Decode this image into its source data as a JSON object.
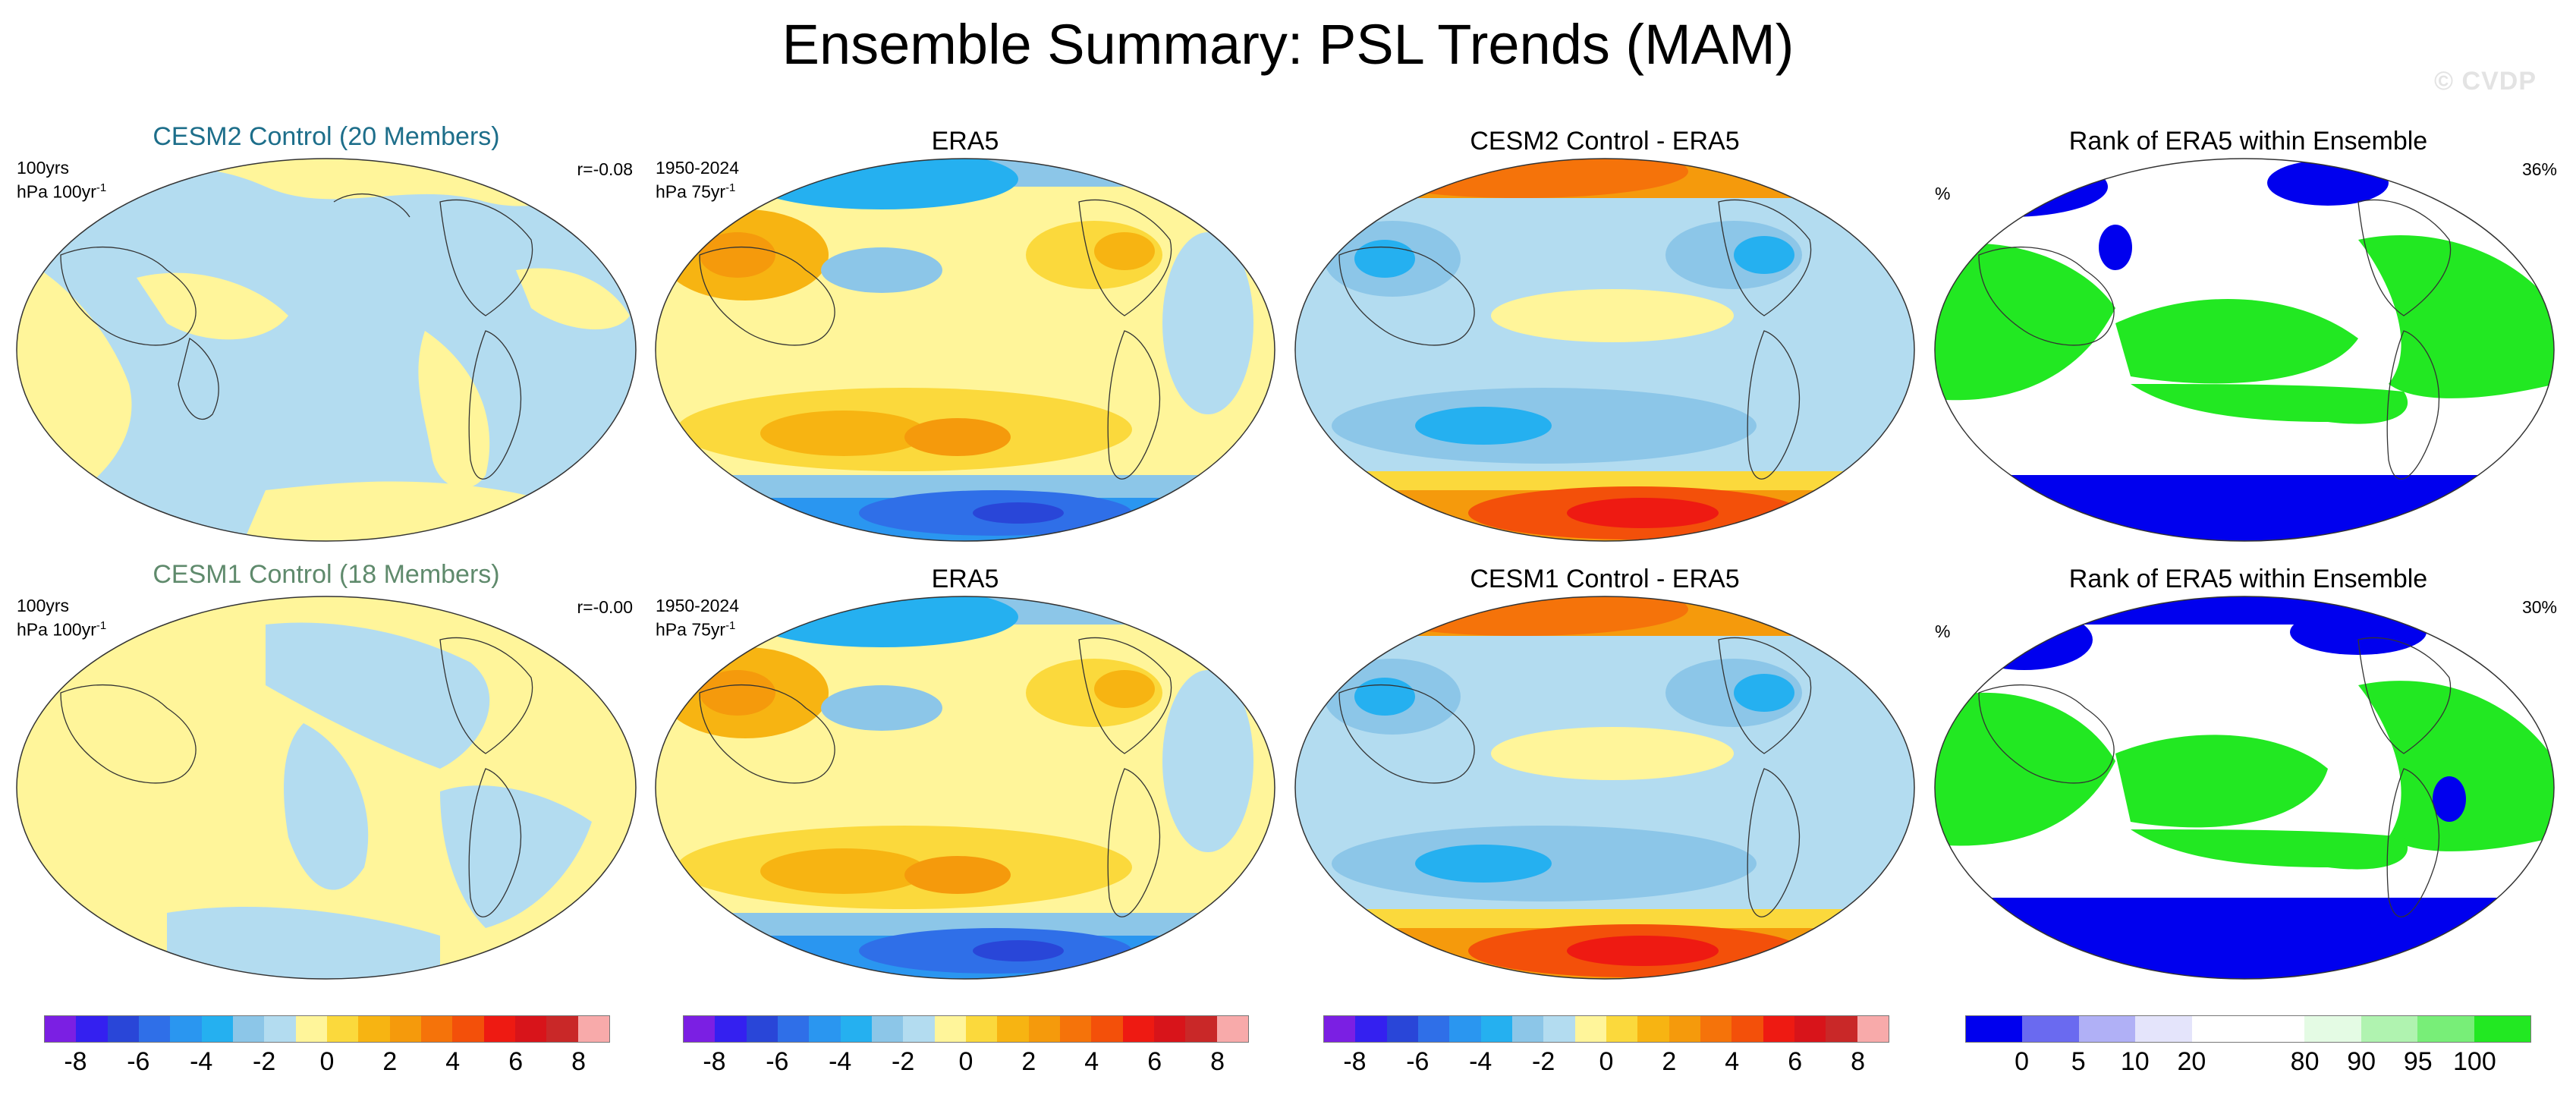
{
  "title": "Ensemble Summary: PSL Trends (MAM)",
  "watermark": "© CVDP",
  "rows": [
    {
      "model_panel": {
        "title": "CESM2 Control (20 Members)",
        "title_color": "#1d6e8a",
        "period": "100yrs",
        "units": "hPa 100yr",
        "units_exp": "-1",
        "corr": "r=-0.08"
      },
      "obs_panel": {
        "title": "ERA5",
        "period": "1950-2024",
        "units": "hPa 75yr",
        "units_exp": "-1"
      },
      "diff_panel": {
        "title": "CESM2 Control - ERA5"
      },
      "rank_panel": {
        "title": "Rank of ERA5 within Ensemble",
        "units": "%",
        "percent": "36%"
      }
    },
    {
      "model_panel": {
        "title": "CESM1 Control (18 Members)",
        "title_color": "#5f8a6c",
        "period": "100yrs",
        "units": "hPa 100yr",
        "units_exp": "-1",
        "corr": "r=-0.00"
      },
      "obs_panel": {
        "title": "ERA5",
        "period": "1950-2024",
        "units": "hPa 75yr",
        "units_exp": "-1"
      },
      "diff_panel": {
        "title": "CESM1 Control - ERA5"
      },
      "rank_panel": {
        "title": "Rank of ERA5 within Ensemble",
        "units": "%",
        "percent": "30%"
      }
    }
  ],
  "colorbar_trend": {
    "colors": [
      "#7b1fe3",
      "#3420f0",
      "#2946d8",
      "#2f6fe8",
      "#2a96f0",
      "#25b0f0",
      "#8cc6e8",
      "#b3dcf0",
      "#fff59a",
      "#fbd93c",
      "#f7b412",
      "#f59a0c",
      "#f5730a",
      "#f3500a",
      "#ee1a12",
      "#d8141a",
      "#c92828",
      "#f8aaaa"
    ],
    "ticks": [
      "-8",
      "-6",
      "-4",
      "-2",
      "0",
      "2",
      "4",
      "6",
      "8"
    ]
  },
  "colorbar_rank": {
    "colors": [
      "#0000ee",
      "#6a6af0",
      "#b0b0f6",
      "#e4e4fb",
      "#ffffff",
      "#ffffff",
      "#e4fbe4",
      "#b0f3b0",
      "#78ee78",
      "#22e822"
    ],
    "ticks": [
      "0",
      "5",
      "10",
      "20",
      "80",
      "90",
      "95",
      "100"
    ]
  },
  "map_colors": {
    "light_blue": "#b3dcf0",
    "light_yellow": "#fff59a"
  }
}
